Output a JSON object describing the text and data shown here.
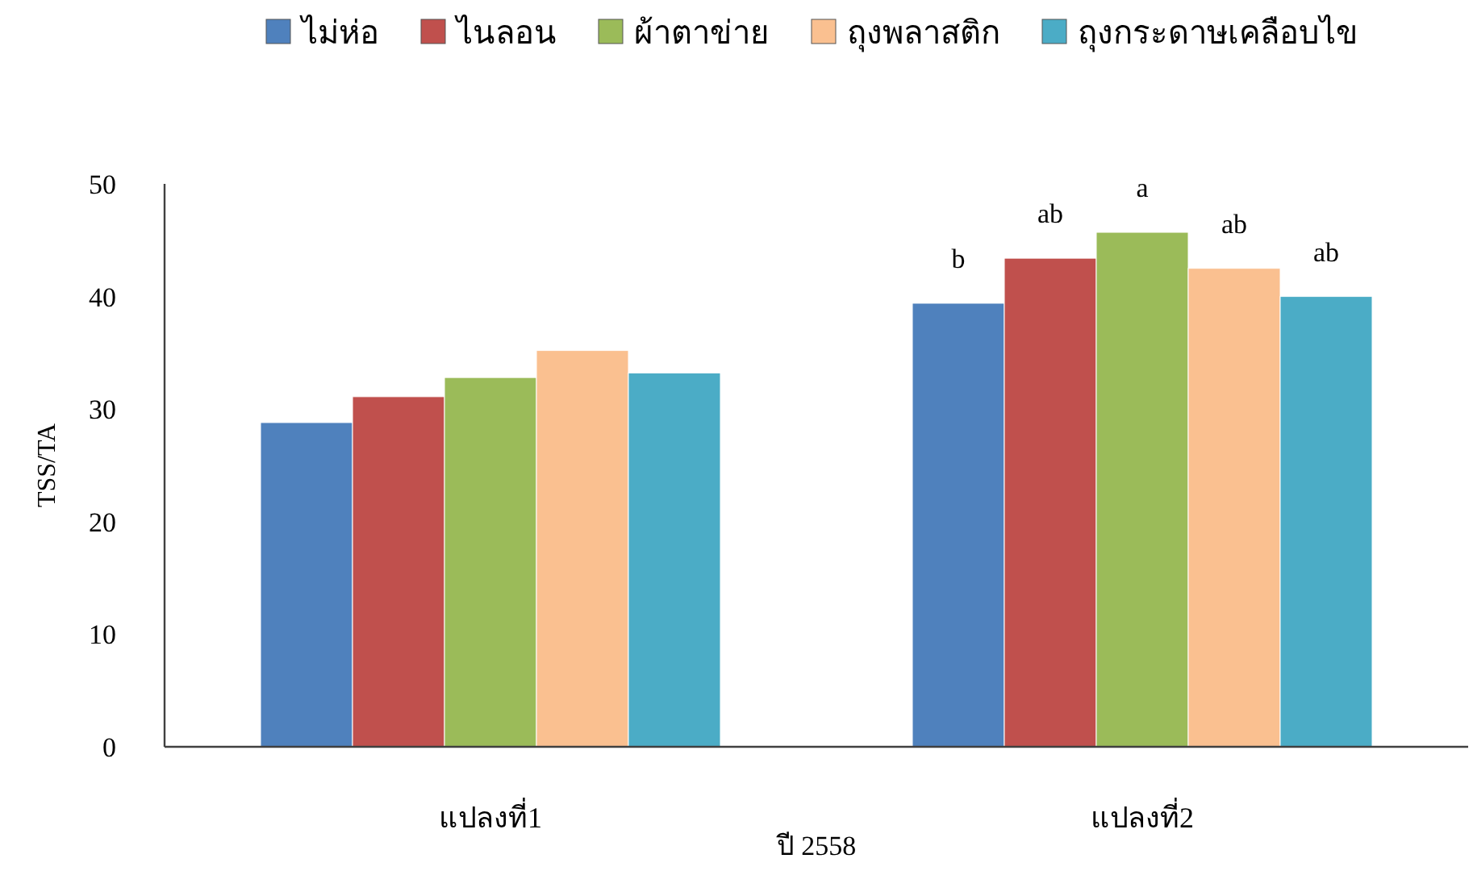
{
  "chart_data": {
    "type": "bar",
    "xlabel": "ปี 2558",
    "ylabel": "TSS/TA",
    "categories": [
      "แปลงที่1",
      "แปลงที่2"
    ],
    "series": [
      {
        "name": "ไม่ห่อ",
        "color": "#4f81bd",
        "values": [
          28.8,
          39.4
        ]
      },
      {
        "name": "ไนลอน",
        "color": "#c0504d",
        "values": [
          31.1,
          43.4
        ]
      },
      {
        "name": "ผ้าตาข่าย",
        "color": "#9bbb59",
        "values": [
          32.8,
          45.7
        ]
      },
      {
        "name": "ถุงพลาสติก",
        "color": "#fac090",
        "values": [
          35.2,
          42.5
        ]
      },
      {
        "name": "ถุงกระดาษเคลือบไข",
        "color": "#4bacc6",
        "values": [
          33.2,
          40.0
        ]
      }
    ],
    "ylim": [
      0,
      50
    ],
    "yticks": [
      0,
      10,
      20,
      30,
      40,
      50
    ],
    "grid": false,
    "legend": "top",
    "annotations": [
      "b",
      "ab",
      "a",
      "ab",
      "ab"
    ]
  }
}
